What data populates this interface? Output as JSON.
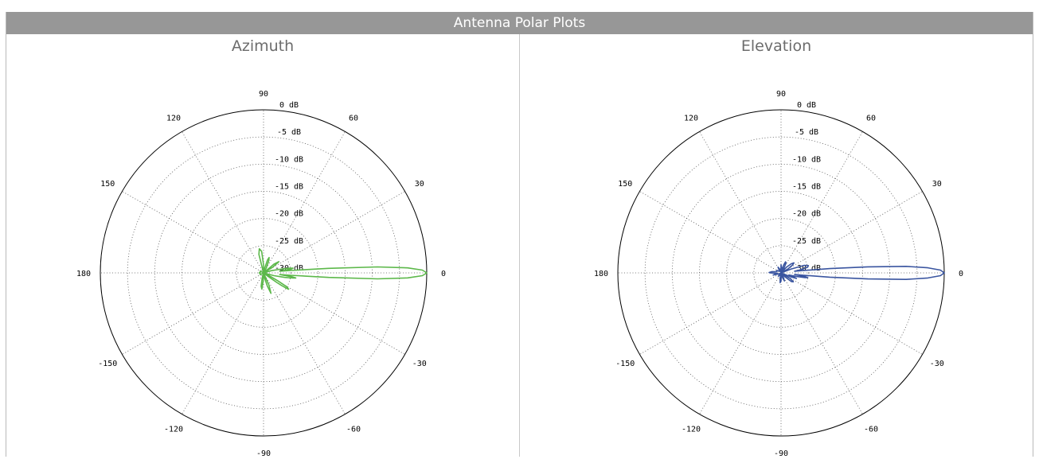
{
  "header": {
    "title": "Antenna Polar Plots"
  },
  "chart_data": [
    {
      "type": "polar-line",
      "title": "Azimuth",
      "series_color": "#5cb84a",
      "angle_labels": [
        "0",
        "30",
        "60",
        "90",
        "120",
        "150",
        "180",
        "-150",
        "-120",
        "-90",
        "-60",
        "-30"
      ],
      "radial_labels": [
        "0 dB",
        "-5 dB",
        "-10 dB",
        "-15 dB",
        "-20 dB",
        "-25 dB",
        "-30 dB"
      ],
      "radial_range_db": [
        -30,
        0
      ],
      "grid": true,
      "pattern": [
        {
          "angle": -50,
          "gain": -30
        },
        {
          "angle": -40,
          "gain": -30
        },
        {
          "angle": -38,
          "gain": -29
        },
        {
          "angle": -36,
          "gain": -27
        },
        {
          "angle": -35,
          "gain": -26
        },
        {
          "angle": -34,
          "gain": -25
        },
        {
          "angle": -33,
          "gain": -24.5
        },
        {
          "angle": -31,
          "gain": -25
        },
        {
          "angle": -29,
          "gain": -27
        },
        {
          "angle": -26,
          "gain": -29
        },
        {
          "angle": -20,
          "gain": -30
        },
        {
          "angle": -15,
          "gain": -28
        },
        {
          "angle": -12,
          "gain": -26
        },
        {
          "angle": -10,
          "gain": -24.5
        },
        {
          "angle": -9,
          "gain": -24
        },
        {
          "angle": -8,
          "gain": -24.5
        },
        {
          "angle": -7,
          "gain": -26
        },
        {
          "angle": -6,
          "gain": -27
        },
        {
          "angle": -5,
          "gain": -25
        },
        {
          "angle": -4,
          "gain": -18
        },
        {
          "angle": -3,
          "gain": -9
        },
        {
          "angle": -2,
          "gain": -3.5
        },
        {
          "angle": -1,
          "gain": -0.8
        },
        {
          "angle": 0,
          "gain": 0
        },
        {
          "angle": 1,
          "gain": -0.8
        },
        {
          "angle": 2,
          "gain": -3.5
        },
        {
          "angle": 3,
          "gain": -9
        },
        {
          "angle": 4,
          "gain": -18
        },
        {
          "angle": 5,
          "gain": -25
        },
        {
          "angle": 6,
          "gain": -27
        },
        {
          "angle": 7,
          "gain": -26
        },
        {
          "angle": 8,
          "gain": -24.8
        },
        {
          "angle": 9,
          "gain": -24.5
        },
        {
          "angle": 10,
          "gain": -25
        },
        {
          "angle": 12,
          "gain": -26.5
        },
        {
          "angle": 16,
          "gain": -28.5
        },
        {
          "angle": 22,
          "gain": -30
        },
        {
          "angle": 32,
          "gain": -28
        },
        {
          "angle": 36,
          "gain": -26.5
        },
        {
          "angle": 40,
          "gain": -27.5
        },
        {
          "angle": 44,
          "gain": -30
        },
        {
          "angle": 60,
          "gain": -29
        },
        {
          "angle": 67,
          "gain": -27.5
        },
        {
          "angle": 70,
          "gain": -27
        },
        {
          "angle": 73,
          "gain": -27.5
        },
        {
          "angle": 80,
          "gain": -29.5
        },
        {
          "angle": 85,
          "gain": -30
        },
        {
          "angle": 90,
          "gain": -28.5
        },
        {
          "angle": 95,
          "gain": -26
        },
        {
          "angle": 100,
          "gain": -25.5
        },
        {
          "angle": 104,
          "gain": -26.5
        },
        {
          "angle": 110,
          "gain": -30
        },
        {
          "angle": 130,
          "gain": -30
        },
        {
          "angle": 150,
          "gain": -29.3
        },
        {
          "angle": 170,
          "gain": -29.4
        },
        {
          "angle": 180,
          "gain": -29.2
        },
        {
          "angle": -170,
          "gain": -29.4
        },
        {
          "angle": -150,
          "gain": -29.3
        },
        {
          "angle": -130,
          "gain": -30
        },
        {
          "angle": -110,
          "gain": -30
        },
        {
          "angle": -104,
          "gain": -29
        },
        {
          "angle": -100,
          "gain": -27.5
        },
        {
          "angle": -96,
          "gain": -27
        },
        {
          "angle": -92,
          "gain": -28.5
        },
        {
          "angle": -85,
          "gain": -30
        },
        {
          "angle": -78,
          "gain": -29
        },
        {
          "angle": -74,
          "gain": -27.5
        },
        {
          "angle": -70,
          "gain": -26
        },
        {
          "angle": -66,
          "gain": -27.5
        },
        {
          "angle": -60,
          "gain": -30
        },
        {
          "angle": -50,
          "gain": -30
        }
      ]
    },
    {
      "type": "polar-line",
      "title": "Elevation",
      "series_color": "#3a55a0",
      "angle_labels": [
        "0",
        "30",
        "60",
        "90",
        "120",
        "150",
        "180",
        "-150",
        "-120",
        "-90",
        "-60",
        "-30"
      ],
      "radial_labels": [
        "0 dB",
        "-5 dB",
        "-10 dB",
        "-15 dB",
        "-20 dB",
        "-25 dB",
        "-30 dB"
      ],
      "radial_range_db": [
        -30,
        0
      ],
      "grid": true,
      "pattern": [
        {
          "angle": -60,
          "gain": -30
        },
        {
          "angle": -45,
          "gain": -29
        },
        {
          "angle": -40,
          "gain": -27.5
        },
        {
          "angle": -36,
          "gain": -27.2
        },
        {
          "angle": -32,
          "gain": -28
        },
        {
          "angle": -26,
          "gain": -30
        },
        {
          "angle": -22,
          "gain": -28
        },
        {
          "angle": -20,
          "gain": -27
        },
        {
          "angle": -18,
          "gain": -27.5
        },
        {
          "angle": -15,
          "gain": -28.5
        },
        {
          "angle": -13,
          "gain": -27
        },
        {
          "angle": -11,
          "gain": -25.5
        },
        {
          "angle": -10,
          "gain": -25
        },
        {
          "angle": -9,
          "gain": -25.5
        },
        {
          "angle": -8,
          "gain": -26.5
        },
        {
          "angle": -7,
          "gain": -27.5
        },
        {
          "angle": -6,
          "gain": -26
        },
        {
          "angle": -5,
          "gain": -21
        },
        {
          "angle": -4,
          "gain": -14
        },
        {
          "angle": -3,
          "gain": -7
        },
        {
          "angle": -2,
          "gain": -3
        },
        {
          "angle": -1,
          "gain": -0.7
        },
        {
          "angle": 0,
          "gain": 0
        },
        {
          "angle": 1,
          "gain": -0.7
        },
        {
          "angle": 2,
          "gain": -3
        },
        {
          "angle": 3,
          "gain": -7
        },
        {
          "angle": 4,
          "gain": -14
        },
        {
          "angle": 5,
          "gain": -21
        },
        {
          "angle": 6,
          "gain": -26
        },
        {
          "angle": 7,
          "gain": -27.5
        },
        {
          "angle": 9,
          "gain": -26.5
        },
        {
          "angle": 12,
          "gain": -25
        },
        {
          "angle": 15,
          "gain": -24.8
        },
        {
          "angle": 18,
          "gain": -25.5
        },
        {
          "angle": 21,
          "gain": -28
        },
        {
          "angle": 25,
          "gain": -30
        },
        {
          "angle": 30,
          "gain": -28.5
        },
        {
          "angle": 34,
          "gain": -27.5
        },
        {
          "angle": 38,
          "gain": -27
        },
        {
          "angle": 42,
          "gain": -27.5
        },
        {
          "angle": 46,
          "gain": -28.5
        },
        {
          "angle": 50,
          "gain": -30
        },
        {
          "angle": 58,
          "gain": -29
        },
        {
          "angle": 63,
          "gain": -28
        },
        {
          "angle": 68,
          "gain": -27.8
        },
        {
          "angle": 72,
          "gain": -28.5
        },
        {
          "angle": 78,
          "gain": -30
        },
        {
          "angle": 85,
          "gain": -29
        },
        {
          "angle": 90,
          "gain": -28.5
        },
        {
          "angle": 94,
          "gain": -29.5
        },
        {
          "angle": 100,
          "gain": -30
        },
        {
          "angle": 110,
          "gain": -29.2
        },
        {
          "angle": 118,
          "gain": -28.8
        },
        {
          "angle": 125,
          "gain": -29.5
        },
        {
          "angle": 135,
          "gain": -29.6
        },
        {
          "angle": 150,
          "gain": -29.1
        },
        {
          "angle": 165,
          "gain": -29.2
        },
        {
          "angle": 172,
          "gain": -28.3
        },
        {
          "angle": 178,
          "gain": -27.8
        },
        {
          "angle": 180,
          "gain": -28
        },
        {
          "angle": -178,
          "gain": -28.7
        },
        {
          "angle": -172,
          "gain": -29.3
        },
        {
          "angle": -165,
          "gain": -28.5
        },
        {
          "angle": -155,
          "gain": -29.6
        },
        {
          "angle": -140,
          "gain": -30
        },
        {
          "angle": -128,
          "gain": -29.2
        },
        {
          "angle": -120,
          "gain": -29.6
        },
        {
          "angle": -110,
          "gain": -30
        },
        {
          "angle": -100,
          "gain": -29
        },
        {
          "angle": -95,
          "gain": -28.2
        },
        {
          "angle": -90,
          "gain": -28.5
        },
        {
          "angle": -85,
          "gain": -29.6
        },
        {
          "angle": -78,
          "gain": -30
        },
        {
          "angle": -72,
          "gain": -29
        },
        {
          "angle": -67,
          "gain": -28.4
        },
        {
          "angle": -62,
          "gain": -29.2
        },
        {
          "angle": -60,
          "gain": -30
        }
      ]
    }
  ]
}
